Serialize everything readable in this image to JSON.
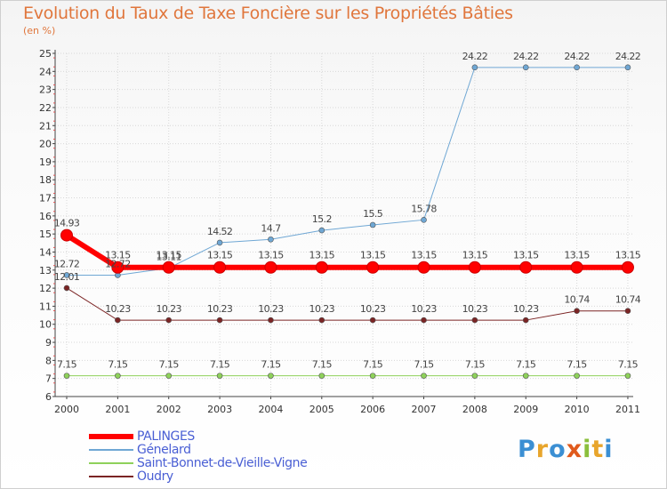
{
  "title": "Evolution du Taux de Taxe Foncière sur les Propriétés Bâties",
  "subtitle": "(en %)",
  "logo": {
    "letters": [
      "P",
      "r",
      "o",
      "x",
      "i",
      "t",
      "i"
    ],
    "colors": [
      "#3b8fd3",
      "#e8a52c",
      "#3b8fd3",
      "#e05a1c",
      "#8bbf3c",
      "#e8a52c",
      "#3b8fd3"
    ]
  },
  "chart_data": {
    "type": "line",
    "categories": [
      "2000",
      "2001",
      "2002",
      "2003",
      "2004",
      "2005",
      "2006",
      "2007",
      "2008",
      "2009",
      "2010",
      "2011"
    ],
    "yticks": [
      "6",
      "7",
      "8",
      "9",
      "10",
      "11",
      "12",
      "13",
      "14",
      "15",
      "16",
      "17",
      "18",
      "19",
      "20",
      "21",
      "22",
      "23",
      "24",
      "25"
    ],
    "ylim": [
      6,
      25
    ],
    "series": [
      {
        "name": "Oudry",
        "color": "#7b2424",
        "width": 1,
        "labelBelow": false,
        "values": [
          12.01,
          10.23,
          10.23,
          10.23,
          10.23,
          10.23,
          10.23,
          10.23,
          10.23,
          10.23,
          10.74,
          10.74
        ],
        "labels": [
          "12.01",
          "10.23",
          "10.23",
          "10.23",
          "10.23",
          "10.23",
          "10.23",
          "10.23",
          "10.23",
          "10.23",
          "10.74",
          "10.74"
        ]
      },
      {
        "name": "Saint-Bonnet-de-Vieille-Vigne",
        "color": "#8ed15a",
        "width": 1,
        "labelBelow": false,
        "values": [
          7.15,
          7.15,
          7.15,
          7.15,
          7.15,
          7.15,
          7.15,
          7.15,
          7.15,
          7.15,
          7.15,
          7.15
        ],
        "labels": [
          "7.15",
          "7.15",
          "7.15",
          "7.15",
          "7.15",
          "7.15",
          "7.15",
          "7.15",
          "7.15",
          "7.15",
          "7.15",
          "7.15"
        ]
      },
      {
        "name": "Génelard",
        "color": "#6fa7d4",
        "width": 1,
        "labelBelow": false,
        "values": [
          12.72,
          12.72,
          13.11,
          14.52,
          14.7,
          15.2,
          15.5,
          15.78,
          24.22,
          24.22,
          24.22,
          24.22
        ],
        "labels": [
          "12.72",
          "12.72",
          "13.11",
          "14.52",
          "14.7",
          "15.2",
          "15.5",
          "15.78",
          "24.22",
          "24.22",
          "24.22",
          "24.22"
        ]
      },
      {
        "name": "PALINGES",
        "color": "#ff0000",
        "width": 6,
        "labelBelow": false,
        "values": [
          14.93,
          13.15,
          13.15,
          13.15,
          13.15,
          13.15,
          13.15,
          13.15,
          13.15,
          13.15,
          13.15,
          13.15
        ],
        "labels": [
          "14.93",
          "13.15",
          "13.15",
          "13.15",
          "13.15",
          "13.15",
          "13.15",
          "13.15",
          "13.15",
          "13.15",
          "13.15",
          "13.15"
        ]
      }
    ],
    "legend": [
      {
        "name": "PALINGES",
        "color": "#ff0000",
        "width": 6
      },
      {
        "name": "Génelard",
        "color": "#6fa7d4",
        "width": 1
      },
      {
        "name": "Saint-Bonnet-de-Vieille-Vigne",
        "color": "#8ed15a",
        "width": 1
      },
      {
        "name": "Oudry",
        "color": "#7b2424",
        "width": 1
      }
    ]
  }
}
